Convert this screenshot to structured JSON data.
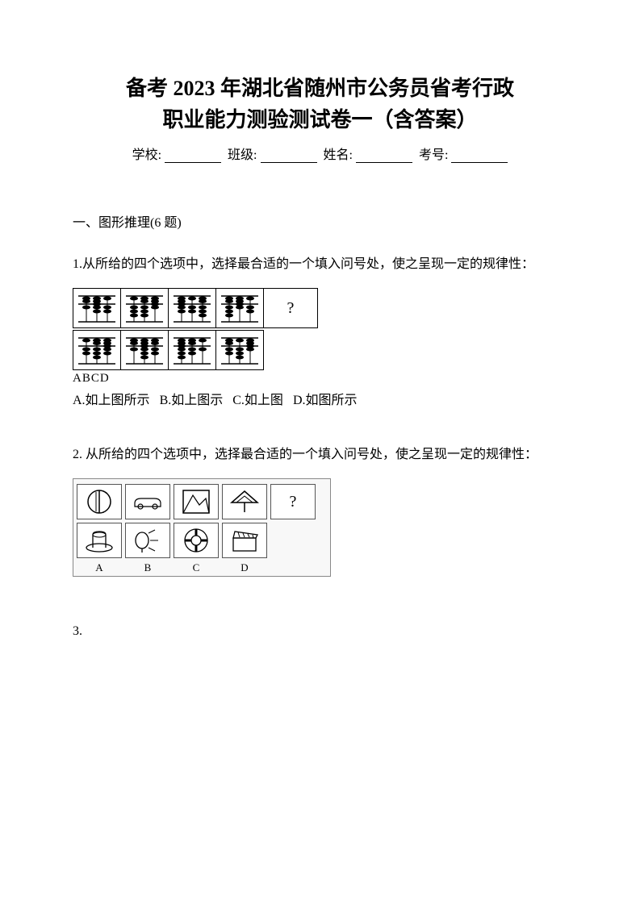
{
  "title_line1": "备考 2023 年湖北省随州市公务员省考行政",
  "title_line2": "职业能力测验测试卷一（含答案）",
  "info": {
    "school_label": "学校:",
    "class_label": "班级:",
    "name_label": "姓名:",
    "id_label": "考号:"
  },
  "section1": {
    "header": "一、图形推理(6 题)",
    "q1": {
      "text": "1.从所给的四个选项中，选择最合适的一个填入问号处，使之呈现一定的规律性：",
      "qmark": "?",
      "abcd": "ABCD",
      "options": {
        "a": "A.如上图所示",
        "b": "B.如上图示",
        "c": "C.如上图",
        "d": "D.如图所示"
      },
      "abacus_sequence": [
        {
          "cols": [
            [
              2,
              1
            ],
            [
              3,
              2
            ],
            [
              1,
              2
            ]
          ]
        },
        {
          "cols": [
            [
              1,
              3
            ],
            [
              2,
              3
            ],
            [
              3,
              1
            ]
          ]
        },
        {
          "cols": [
            [
              3,
              2
            ],
            [
              1,
              2
            ],
            [
              2,
              3
            ]
          ]
        },
        {
          "cols": [
            [
              2,
              3
            ],
            [
              3,
              1
            ],
            [
              1,
              2
            ]
          ]
        }
      ],
      "abacus_options": [
        {
          "cols": [
            [
              1,
              2
            ],
            [
              2,
              3
            ],
            [
              3,
              2
            ]
          ]
        },
        {
          "cols": [
            [
              2,
              1
            ],
            [
              3,
              3
            ],
            [
              2,
              2
            ]
          ]
        },
        {
          "cols": [
            [
              3,
              3
            ],
            [
              2,
              2
            ],
            [
              1,
              1
            ]
          ]
        },
        {
          "cols": [
            [
              2,
              2
            ],
            [
              1,
              3
            ],
            [
              3,
              1
            ]
          ]
        }
      ]
    },
    "q2": {
      "text": "2. 从所给的四个选项中，选择最合适的一个填入问号处，使之呈现一定的规律性：",
      "labels": [
        "A",
        "B",
        "C",
        "D"
      ],
      "qmark": "?"
    },
    "q3": {
      "text": "3."
    }
  },
  "colors": {
    "text": "#000000",
    "bg": "#ffffff",
    "border": "#000000",
    "figure_bg": "#f8f8f8",
    "figure_border": "#888888"
  },
  "fonts": {
    "title_size": 26,
    "body_size": 16,
    "small_size": 13
  }
}
